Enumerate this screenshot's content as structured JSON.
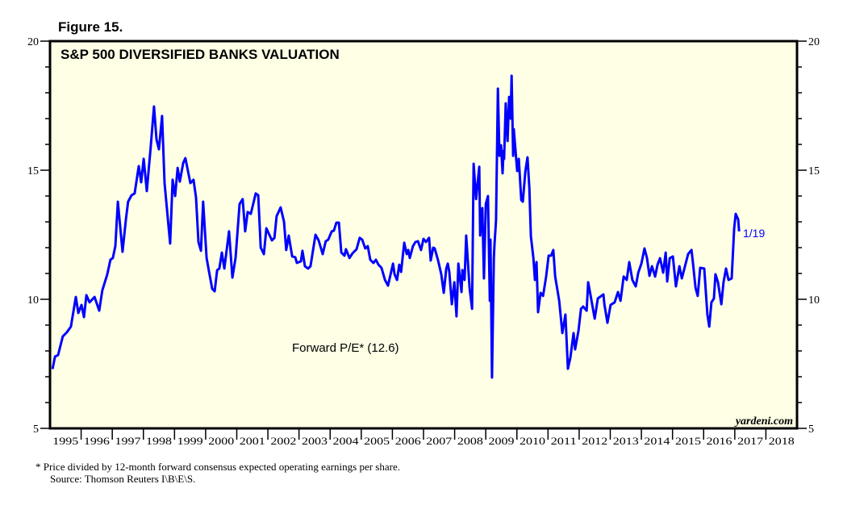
{
  "figure_label": "Figure 15.",
  "footnote": "*  Price divided by 12-month forward consensus expected operating earnings per share.",
  "source": "Source: Thomson Reuters I\\B\\E\\S.",
  "watermark": "yardeni.com",
  "chart_data": {
    "type": "line",
    "title": "S&P 500 DIVERSIFIED BANKS VALUATION",
    "xlabel": "",
    "ylabel": "",
    "xlim": [
      1995,
      2019
    ],
    "ylim": [
      5,
      20
    ],
    "y_ticks": [
      5,
      10,
      15,
      20
    ],
    "x_tick_labels": [
      "1995",
      "1996",
      "1997",
      "1998",
      "1999",
      "2000",
      "2001",
      "2002",
      "2003",
      "2004",
      "2005",
      "2006",
      "2007",
      "2008",
      "2009",
      "2010",
      "2011",
      "2012",
      "2013",
      "2014",
      "2015",
      "2016",
      "2017",
      "2018"
    ],
    "grid": false,
    "background_color": "#FFFFE6",
    "line_color": "#0000FF",
    "annotations": {
      "series_label": "Forward P/E* (12.6)",
      "end_label": "1/19"
    },
    "series": [
      {
        "name": "Forward P/E* (12.6)",
        "points": [
          [
            1995.08,
            7.3
          ],
          [
            1995.16,
            7.78
          ],
          [
            1995.26,
            7.84
          ],
          [
            1995.41,
            8.56
          ],
          [
            1995.54,
            8.72
          ],
          [
            1995.67,
            8.94
          ],
          [
            1995.83,
            10.09
          ],
          [
            1995.91,
            9.47
          ],
          [
            1996.01,
            9.78
          ],
          [
            1996.09,
            9.31
          ],
          [
            1996.17,
            10.16
          ],
          [
            1996.27,
            9.88
          ],
          [
            1996.43,
            10.09
          ],
          [
            1996.58,
            9.56
          ],
          [
            1996.68,
            10.34
          ],
          [
            1996.84,
            10.97
          ],
          [
            1996.94,
            11.53
          ],
          [
            1997.02,
            11.6
          ],
          [
            1997.1,
            12.06
          ],
          [
            1997.18,
            13.78
          ],
          [
            1997.33,
            11.84
          ],
          [
            1997.44,
            13.1
          ],
          [
            1997.51,
            13.78
          ],
          [
            1997.62,
            14.03
          ],
          [
            1997.72,
            14.1
          ],
          [
            1997.85,
            15.16
          ],
          [
            1997.93,
            14.53
          ],
          [
            1998.01,
            15.44
          ],
          [
            1998.11,
            14.19
          ],
          [
            1998.24,
            15.97
          ],
          [
            1998.34,
            17.47
          ],
          [
            1998.42,
            16.19
          ],
          [
            1998.5,
            15.81
          ],
          [
            1998.6,
            17.1
          ],
          [
            1998.68,
            14.5
          ],
          [
            1998.86,
            12.16
          ],
          [
            1998.94,
            14.63
          ],
          [
            1999.02,
            14.0
          ],
          [
            1999.1,
            15.09
          ],
          [
            1999.17,
            14.56
          ],
          [
            1999.28,
            15.28
          ],
          [
            1999.35,
            15.47
          ],
          [
            1999.51,
            14.5
          ],
          [
            1999.61,
            14.63
          ],
          [
            1999.69,
            13.94
          ],
          [
            1999.77,
            12.22
          ],
          [
            1999.85,
            11.88
          ],
          [
            1999.92,
            13.78
          ],
          [
            2000.03,
            11.6
          ],
          [
            2000.11,
            11.06
          ],
          [
            2000.21,
            10.41
          ],
          [
            2000.29,
            10.31
          ],
          [
            2000.37,
            11.13
          ],
          [
            2000.44,
            11.19
          ],
          [
            2000.52,
            11.81
          ],
          [
            2000.6,
            11.19
          ],
          [
            2000.75,
            12.63
          ],
          [
            2000.86,
            10.84
          ],
          [
            2000.96,
            11.6
          ],
          [
            2001.09,
            13.69
          ],
          [
            2001.19,
            13.88
          ],
          [
            2001.27,
            12.63
          ],
          [
            2001.35,
            13.38
          ],
          [
            2001.45,
            13.31
          ],
          [
            2001.61,
            14.1
          ],
          [
            2001.69,
            14.03
          ],
          [
            2001.77,
            12.0
          ],
          [
            2001.87,
            11.75
          ],
          [
            2001.95,
            12.75
          ],
          [
            2002.13,
            12.28
          ],
          [
            2002.21,
            12.38
          ],
          [
            2002.28,
            13.22
          ],
          [
            2002.41,
            13.56
          ],
          [
            2002.52,
            13.0
          ],
          [
            2002.59,
            11.91
          ],
          [
            2002.67,
            12.47
          ],
          [
            2002.78,
            11.66
          ],
          [
            2002.88,
            11.63
          ],
          [
            2002.93,
            11.41
          ],
          [
            2003.06,
            11.47
          ],
          [
            2003.11,
            11.88
          ],
          [
            2003.19,
            11.28
          ],
          [
            2003.29,
            11.19
          ],
          [
            2003.37,
            11.28
          ],
          [
            2003.53,
            12.5
          ],
          [
            2003.63,
            12.28
          ],
          [
            2003.76,
            11.75
          ],
          [
            2003.86,
            12.25
          ],
          [
            2003.94,
            12.31
          ],
          [
            2004.05,
            12.63
          ],
          [
            2004.12,
            12.66
          ],
          [
            2004.2,
            12.97
          ],
          [
            2004.28,
            12.97
          ],
          [
            2004.36,
            11.81
          ],
          [
            2004.46,
            11.69
          ],
          [
            2004.51,
            11.94
          ],
          [
            2004.62,
            11.6
          ],
          [
            2004.72,
            11.78
          ],
          [
            2004.85,
            11.94
          ],
          [
            2004.95,
            12.38
          ],
          [
            2005.03,
            12.31
          ],
          [
            2005.13,
            11.97
          ],
          [
            2005.21,
            12.06
          ],
          [
            2005.29,
            11.53
          ],
          [
            2005.39,
            11.41
          ],
          [
            2005.47,
            11.53
          ],
          [
            2005.55,
            11.34
          ],
          [
            2005.65,
            11.22
          ],
          [
            2005.76,
            10.75
          ],
          [
            2005.86,
            10.53
          ],
          [
            2006.02,
            11.38
          ],
          [
            2006.07,
            10.97
          ],
          [
            2006.15,
            10.75
          ],
          [
            2006.22,
            11.34
          ],
          [
            2006.28,
            11.06
          ],
          [
            2006.38,
            12.19
          ],
          [
            2006.46,
            11.75
          ],
          [
            2006.51,
            11.91
          ],
          [
            2006.56,
            11.6
          ],
          [
            2006.66,
            12.06
          ],
          [
            2006.74,
            12.22
          ],
          [
            2006.82,
            12.25
          ],
          [
            2006.92,
            11.91
          ],
          [
            2007.0,
            12.34
          ],
          [
            2007.08,
            12.22
          ],
          [
            2007.18,
            12.38
          ],
          [
            2007.23,
            11.5
          ],
          [
            2007.31,
            12.0
          ],
          [
            2007.36,
            11.97
          ],
          [
            2007.47,
            11.5
          ],
          [
            2007.57,
            10.97
          ],
          [
            2007.65,
            10.25
          ],
          [
            2007.73,
            11.19
          ],
          [
            2007.78,
            11.38
          ],
          [
            2007.83,
            11.06
          ],
          [
            2007.91,
            9.81
          ],
          [
            2007.99,
            10.66
          ],
          [
            2008.06,
            9.34
          ],
          [
            2008.12,
            11.38
          ],
          [
            2008.22,
            10.28
          ],
          [
            2008.25,
            11.13
          ],
          [
            2008.32,
            10.75
          ],
          [
            2008.37,
            12.47
          ],
          [
            2008.48,
            10.44
          ],
          [
            2008.56,
            9.63
          ],
          [
            2008.61,
            15.25
          ],
          [
            2008.69,
            13.88
          ],
          [
            2008.74,
            14.5
          ],
          [
            2008.79,
            15.13
          ],
          [
            2008.82,
            12.47
          ],
          [
            2008.89,
            13.53
          ],
          [
            2008.94,
            10.81
          ],
          [
            2009.0,
            13.69
          ],
          [
            2009.07,
            14.0
          ],
          [
            2009.13,
            9.94
          ],
          [
            2009.15,
            12.31
          ],
          [
            2009.2,
            6.97
          ],
          [
            2009.26,
            11.6
          ],
          [
            2009.28,
            12.13
          ],
          [
            2009.33,
            13.06
          ],
          [
            2009.39,
            18.16
          ],
          [
            2009.44,
            15.56
          ],
          [
            2009.49,
            15.97
          ],
          [
            2009.54,
            14.88
          ],
          [
            2009.57,
            15.75
          ],
          [
            2009.59,
            15.44
          ],
          [
            2009.64,
            17.59
          ],
          [
            2009.7,
            16.13
          ],
          [
            2009.75,
            17.84
          ],
          [
            2009.8,
            17.0
          ],
          [
            2009.83,
            18.66
          ],
          [
            2009.88,
            15.56
          ],
          [
            2009.9,
            16.59
          ],
          [
            2010.01,
            14.97
          ],
          [
            2010.06,
            15.44
          ],
          [
            2010.14,
            13.84
          ],
          [
            2010.19,
            13.78
          ],
          [
            2010.27,
            14.94
          ],
          [
            2010.34,
            15.5
          ],
          [
            2010.4,
            14.31
          ],
          [
            2010.45,
            12.44
          ],
          [
            2010.53,
            11.6
          ],
          [
            2010.58,
            10.75
          ],
          [
            2010.63,
            11.44
          ],
          [
            2010.68,
            9.5
          ],
          [
            2010.76,
            10.25
          ],
          [
            2010.84,
            10.13
          ],
          [
            2010.94,
            10.88
          ],
          [
            2011.02,
            11.69
          ],
          [
            2011.1,
            11.69
          ],
          [
            2011.17,
            11.91
          ],
          [
            2011.23,
            10.88
          ],
          [
            2011.36,
            9.94
          ],
          [
            2011.46,
            8.69
          ],
          [
            2011.56,
            9.41
          ],
          [
            2011.64,
            7.31
          ],
          [
            2011.72,
            7.75
          ],
          [
            2011.82,
            8.69
          ],
          [
            2011.87,
            8.06
          ],
          [
            2011.98,
            8.78
          ],
          [
            2012.06,
            9.63
          ],
          [
            2012.13,
            9.72
          ],
          [
            2012.24,
            9.56
          ],
          [
            2012.29,
            10.66
          ],
          [
            2012.37,
            10.13
          ],
          [
            2012.5,
            9.25
          ],
          [
            2012.6,
            10.03
          ],
          [
            2012.78,
            10.19
          ],
          [
            2012.81,
            9.81
          ],
          [
            2012.91,
            9.09
          ],
          [
            2013.01,
            9.78
          ],
          [
            2013.14,
            9.88
          ],
          [
            2013.25,
            10.28
          ],
          [
            2013.33,
            9.94
          ],
          [
            2013.43,
            10.88
          ],
          [
            2013.53,
            10.75
          ],
          [
            2013.61,
            11.44
          ],
          [
            2013.71,
            10.75
          ],
          [
            2013.82,
            10.5
          ],
          [
            2013.9,
            11.03
          ],
          [
            2014.0,
            11.38
          ],
          [
            2014.1,
            11.97
          ],
          [
            2014.18,
            11.6
          ],
          [
            2014.26,
            10.91
          ],
          [
            2014.34,
            11.28
          ],
          [
            2014.44,
            10.88
          ],
          [
            2014.52,
            11.34
          ],
          [
            2014.6,
            11.59
          ],
          [
            2014.7,
            11.03
          ],
          [
            2014.78,
            11.81
          ],
          [
            2014.83,
            10.69
          ],
          [
            2014.91,
            11.59
          ],
          [
            2015.01,
            11.66
          ],
          [
            2015.11,
            10.5
          ],
          [
            2015.22,
            11.28
          ],
          [
            2015.3,
            10.81
          ],
          [
            2015.37,
            11.13
          ],
          [
            2015.5,
            11.75
          ],
          [
            2015.61,
            11.91
          ],
          [
            2015.66,
            11.38
          ],
          [
            2015.74,
            10.44
          ],
          [
            2015.81,
            10.13
          ],
          [
            2015.89,
            11.22
          ],
          [
            2016.02,
            11.19
          ],
          [
            2016.12,
            9.41
          ],
          [
            2016.18,
            8.94
          ],
          [
            2016.25,
            9.88
          ],
          [
            2016.33,
            10.03
          ],
          [
            2016.38,
            10.97
          ],
          [
            2016.46,
            10.66
          ],
          [
            2016.57,
            9.81
          ],
          [
            2016.64,
            10.66
          ],
          [
            2016.72,
            11.19
          ],
          [
            2016.8,
            10.75
          ],
          [
            2016.9,
            10.81
          ],
          [
            2016.98,
            12.75
          ],
          [
            2017.03,
            13.31
          ],
          [
            2017.11,
            13.09
          ],
          [
            2017.14,
            12.63
          ]
        ]
      }
    ]
  }
}
